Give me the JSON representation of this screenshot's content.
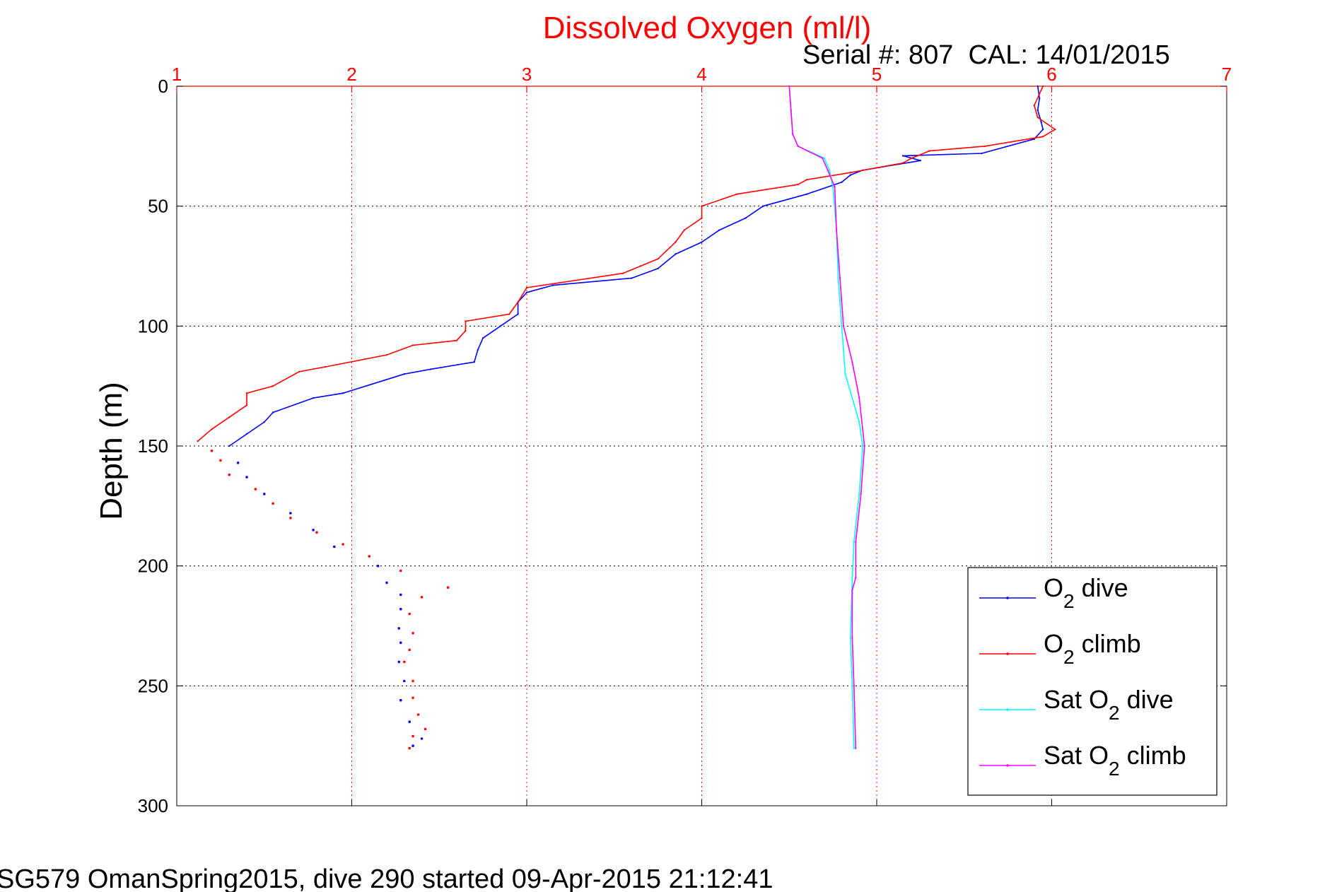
{
  "chart_data": {
    "type": "line",
    "title": "Dissolved Oxygen (ml/l)",
    "subtitle": "Serial #: 807  CAL: 14/01/2015",
    "ylabel": "Depth (m)",
    "xlabel": "",
    "xlim": [
      1,
      7
    ],
    "ylim": [
      0,
      300
    ],
    "y_reversed": true,
    "x_axis_position": "top",
    "xticks": [
      1,
      2,
      3,
      4,
      5,
      6,
      7
    ],
    "yticks": [
      0,
      50,
      100,
      150,
      200,
      250,
      300
    ],
    "grid": true,
    "legend_position": "bottom-right",
    "footer": "SG579 OmanSpring2015, dive 290 started 09-Apr-2015 21:12:41",
    "colors": {
      "title": "#ff0000",
      "x_ticks": "#ff0000",
      "grid_x": "#ff0000",
      "grid_y": "#000000"
    },
    "series": [
      {
        "legend_main": "O",
        "legend_sub": "2",
        "legend_tail": " dive",
        "color": "#0000ff",
        "points": [
          [
            5.92,
            0
          ],
          [
            5.93,
            5
          ],
          [
            5.92,
            10
          ],
          [
            5.94,
            15
          ],
          [
            5.95,
            18
          ],
          [
            5.9,
            22
          ],
          [
            5.6,
            28
          ],
          [
            5.15,
            29
          ],
          [
            5.25,
            31
          ],
          [
            4.92,
            35
          ],
          [
            4.85,
            37
          ],
          [
            4.8,
            40
          ],
          [
            4.6,
            45
          ],
          [
            4.35,
            50
          ],
          [
            4.25,
            55
          ],
          [
            4.1,
            60
          ],
          [
            4.0,
            65
          ],
          [
            3.85,
            70
          ],
          [
            3.75,
            76
          ],
          [
            3.6,
            80
          ],
          [
            3.15,
            83
          ],
          [
            3.0,
            86
          ],
          [
            2.95,
            90
          ],
          [
            2.95,
            95
          ],
          [
            2.85,
            100
          ],
          [
            2.75,
            105
          ],
          [
            2.72,
            110
          ],
          [
            2.7,
            115
          ],
          [
            2.45,
            118
          ],
          [
            2.3,
            120
          ],
          [
            1.95,
            128
          ],
          [
            1.78,
            130
          ],
          [
            1.55,
            136
          ],
          [
            1.5,
            140
          ],
          [
            1.4,
            145
          ],
          [
            1.3,
            150
          ],
          [
            1.35,
            157
          ],
          [
            1.4,
            163
          ],
          [
            1.5,
            170
          ],
          [
            1.65,
            178
          ],
          [
            1.78,
            185
          ],
          [
            1.9,
            192
          ],
          [
            2.15,
            200
          ],
          [
            2.2,
            207
          ],
          [
            2.28,
            212
          ],
          [
            2.28,
            218
          ],
          [
            2.27,
            226
          ],
          [
            2.28,
            232
          ],
          [
            2.27,
            240
          ],
          [
            2.3,
            248
          ],
          [
            2.28,
            256
          ],
          [
            2.33,
            265
          ],
          [
            2.4,
            272
          ],
          [
            2.35,
            275
          ]
        ]
      },
      {
        "legend_main": "O",
        "legend_sub": "2",
        "legend_tail": " climb",
        "color": "#ff0000",
        "points": [
          [
            5.95,
            0
          ],
          [
            5.9,
            8
          ],
          [
            5.92,
            13
          ],
          [
            6.02,
            18
          ],
          [
            5.95,
            21
          ],
          [
            5.62,
            25
          ],
          [
            5.3,
            27
          ],
          [
            5.2,
            30
          ],
          [
            5.15,
            32
          ],
          [
            4.85,
            36
          ],
          [
            4.6,
            39
          ],
          [
            4.55,
            41
          ],
          [
            4.2,
            45
          ],
          [
            4.0,
            50
          ],
          [
            4.0,
            55
          ],
          [
            3.9,
            60
          ],
          [
            3.85,
            65
          ],
          [
            3.75,
            72
          ],
          [
            3.65,
            75
          ],
          [
            3.55,
            78
          ],
          [
            3.0,
            84
          ],
          [
            2.95,
            90
          ],
          [
            2.9,
            95
          ],
          [
            2.65,
            98
          ],
          [
            2.65,
            102
          ],
          [
            2.6,
            106
          ],
          [
            2.35,
            108
          ],
          [
            2.2,
            112
          ],
          [
            1.85,
            117
          ],
          [
            1.7,
            119
          ],
          [
            1.55,
            125
          ],
          [
            1.4,
            128
          ],
          [
            1.4,
            133
          ],
          [
            1.3,
            138
          ],
          [
            1.2,
            143
          ],
          [
            1.12,
            148
          ],
          [
            1.2,
            152
          ],
          [
            1.25,
            156
          ],
          [
            1.3,
            162
          ],
          [
            1.45,
            168
          ],
          [
            1.55,
            174
          ],
          [
            1.65,
            180
          ],
          [
            1.8,
            186
          ],
          [
            1.95,
            191
          ],
          [
            2.1,
            196
          ],
          [
            2.28,
            202
          ],
          [
            2.55,
            209
          ],
          [
            2.4,
            213
          ],
          [
            2.33,
            220
          ],
          [
            2.35,
            228
          ],
          [
            2.33,
            235
          ],
          [
            2.3,
            240
          ],
          [
            2.35,
            248
          ],
          [
            2.35,
            255
          ],
          [
            2.38,
            262
          ],
          [
            2.42,
            268
          ],
          [
            2.35,
            271
          ],
          [
            2.33,
            276
          ]
        ]
      },
      {
        "legend_main": "Sat O",
        "legend_sub": "2",
        "legend_tail": " dive",
        "color": "#00ffff",
        "points": [
          [
            4.5,
            0
          ],
          [
            4.51,
            10
          ],
          [
            4.52,
            20
          ],
          [
            4.55,
            25
          ],
          [
            4.7,
            30
          ],
          [
            4.73,
            35
          ],
          [
            4.75,
            42
          ],
          [
            4.77,
            60
          ],
          [
            4.78,
            80
          ],
          [
            4.8,
            100
          ],
          [
            4.82,
            120
          ],
          [
            4.9,
            140
          ],
          [
            4.92,
            150
          ],
          [
            4.9,
            170
          ],
          [
            4.87,
            190
          ],
          [
            4.86,
            206
          ],
          [
            4.85,
            230
          ],
          [
            4.86,
            250
          ],
          [
            4.87,
            276
          ]
        ]
      },
      {
        "legend_main": "Sat O",
        "legend_sub": "2",
        "legend_tail": " climb",
        "color": "#ff00ff",
        "points": [
          [
            4.5,
            0
          ],
          [
            4.51,
            10
          ],
          [
            4.52,
            20
          ],
          [
            4.55,
            25
          ],
          [
            4.69,
            30
          ],
          [
            4.72,
            35
          ],
          [
            4.76,
            42
          ],
          [
            4.77,
            60
          ],
          [
            4.79,
            80
          ],
          [
            4.81,
            100
          ],
          [
            4.86,
            115
          ],
          [
            4.9,
            130
          ],
          [
            4.93,
            150
          ],
          [
            4.91,
            170
          ],
          [
            4.88,
            190
          ],
          [
            4.88,
            205
          ],
          [
            4.86,
            210
          ],
          [
            4.86,
            230
          ],
          [
            4.87,
            250
          ],
          [
            4.88,
            276
          ]
        ]
      }
    ]
  }
}
